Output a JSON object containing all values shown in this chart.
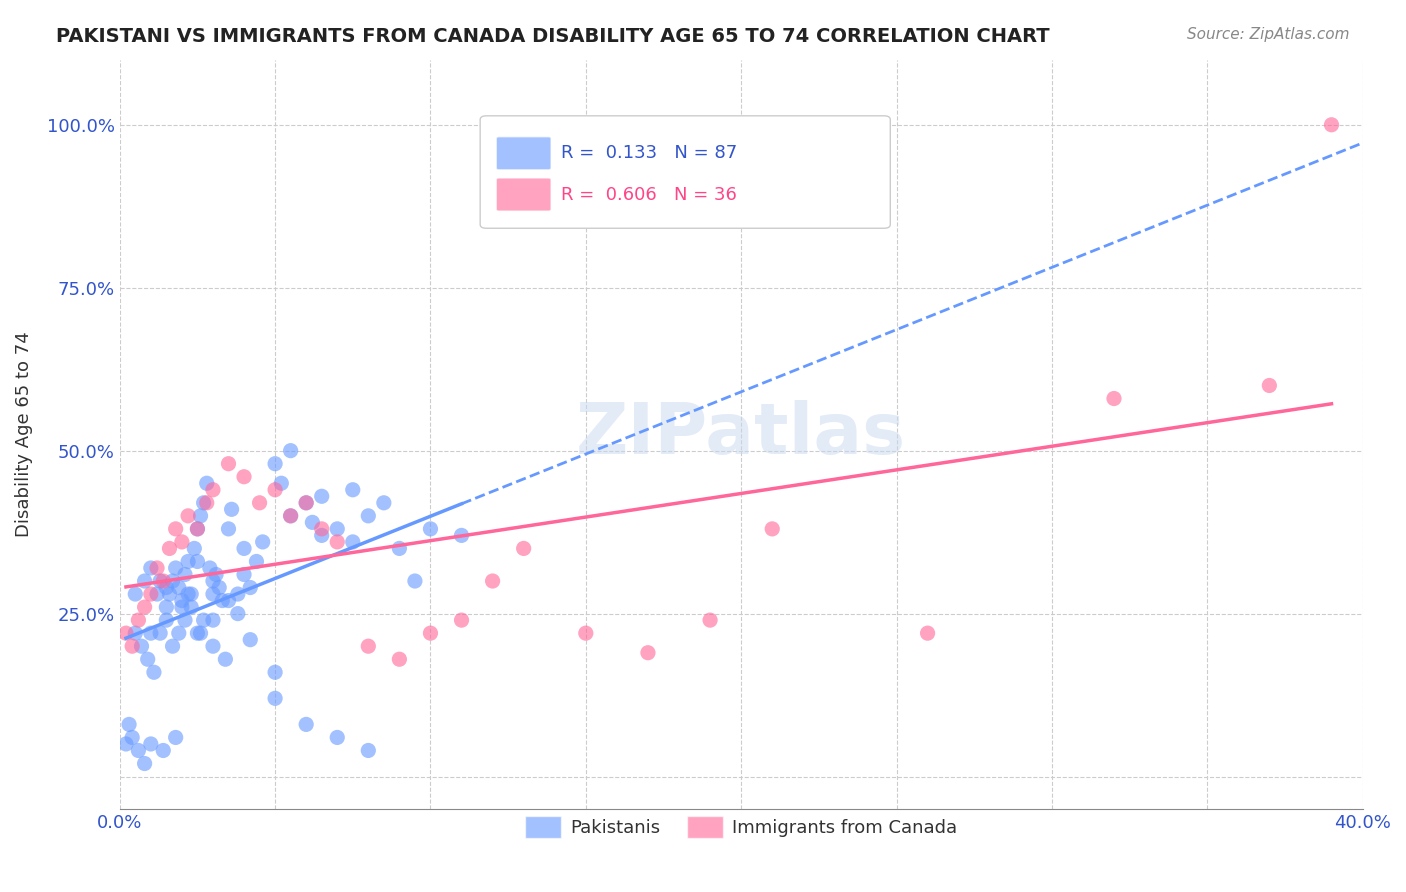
{
  "title": "PAKISTANI VS IMMIGRANTS FROM CANADA DISABILITY AGE 65 TO 74 CORRELATION CHART",
  "source": "Source: ZipAtlas.com",
  "xlabel": "",
  "ylabel": "Disability Age 65 to 74",
  "xlim": [
    0.0,
    0.4
  ],
  "ylim": [
    -0.05,
    1.1
  ],
  "xticks": [
    0.0,
    0.05,
    0.1,
    0.15,
    0.2,
    0.25,
    0.3,
    0.35,
    0.4
  ],
  "xtick_labels": [
    "0.0%",
    "",
    "",
    "",
    "",
    "",
    "",
    "",
    "40.0%"
  ],
  "yticks": [
    0.0,
    0.25,
    0.5,
    0.75,
    1.0
  ],
  "ytick_labels": [
    "",
    "25.0%",
    "50.0%",
    "75.0%",
    "100.0%"
  ],
  "legend_r1": "R =  0.133   N = 87",
  "legend_r2": "R =  0.606   N = 36",
  "blue_color": "#6699ff",
  "pink_color": "#ff6699",
  "watermark": "ZIPatlas",
  "blue_R": 0.133,
  "pink_R": 0.606,
  "blue_scatter_x": [
    0.005,
    0.008,
    0.01,
    0.012,
    0.013,
    0.015,
    0.016,
    0.017,
    0.018,
    0.019,
    0.02,
    0.021,
    0.022,
    0.023,
    0.024,
    0.025,
    0.026,
    0.027,
    0.028,
    0.029,
    0.03,
    0.03,
    0.031,
    0.032,
    0.033,
    0.035,
    0.036,
    0.038,
    0.04,
    0.042,
    0.044,
    0.046,
    0.05,
    0.052,
    0.055,
    0.06,
    0.062,
    0.065,
    0.07,
    0.075,
    0.08,
    0.085,
    0.09,
    0.095,
    0.1,
    0.005,
    0.007,
    0.009,
    0.011,
    0.013,
    0.015,
    0.017,
    0.019,
    0.021,
    0.023,
    0.025,
    0.027,
    0.002,
    0.003,
    0.004,
    0.006,
    0.008,
    0.01,
    0.014,
    0.018,
    0.022,
    0.026,
    0.03,
    0.034,
    0.038,
    0.042,
    0.05,
    0.06,
    0.07,
    0.08,
    0.01,
    0.02,
    0.03,
    0.04,
    0.05,
    0.015,
    0.025,
    0.035,
    0.055,
    0.065,
    0.075,
    0.11
  ],
  "blue_scatter_y": [
    0.28,
    0.3,
    0.32,
    0.28,
    0.3,
    0.26,
    0.28,
    0.3,
    0.32,
    0.29,
    0.27,
    0.31,
    0.33,
    0.28,
    0.35,
    0.38,
    0.4,
    0.42,
    0.45,
    0.32,
    0.3,
    0.28,
    0.31,
    0.29,
    0.27,
    0.38,
    0.41,
    0.28,
    0.31,
    0.29,
    0.33,
    0.36,
    0.48,
    0.45,
    0.5,
    0.42,
    0.39,
    0.43,
    0.38,
    0.36,
    0.4,
    0.42,
    0.35,
    0.3,
    0.38,
    0.22,
    0.2,
    0.18,
    0.16,
    0.22,
    0.24,
    0.2,
    0.22,
    0.24,
    0.26,
    0.22,
    0.24,
    0.05,
    0.08,
    0.06,
    0.04,
    0.02,
    0.05,
    0.04,
    0.06,
    0.28,
    0.22,
    0.2,
    0.18,
    0.25,
    0.21,
    0.16,
    0.08,
    0.06,
    0.04,
    0.22,
    0.26,
    0.24,
    0.35,
    0.12,
    0.29,
    0.33,
    0.27,
    0.4,
    0.37,
    0.44,
    0.37
  ],
  "pink_scatter_x": [
    0.002,
    0.004,
    0.006,
    0.008,
    0.01,
    0.012,
    0.014,
    0.016,
    0.018,
    0.02,
    0.022,
    0.025,
    0.028,
    0.03,
    0.035,
    0.04,
    0.045,
    0.05,
    0.055,
    0.06,
    0.065,
    0.07,
    0.08,
    0.09,
    0.1,
    0.11,
    0.12,
    0.13,
    0.15,
    0.17,
    0.19,
    0.21,
    0.26,
    0.32,
    0.37,
    0.39
  ],
  "pink_scatter_y": [
    0.22,
    0.2,
    0.24,
    0.26,
    0.28,
    0.32,
    0.3,
    0.35,
    0.38,
    0.36,
    0.4,
    0.38,
    0.42,
    0.44,
    0.48,
    0.46,
    0.42,
    0.44,
    0.4,
    0.42,
    0.38,
    0.36,
    0.2,
    0.18,
    0.22,
    0.24,
    0.3,
    0.35,
    0.22,
    0.19,
    0.24,
    0.38,
    0.22,
    0.58,
    0.6,
    1.0
  ]
}
